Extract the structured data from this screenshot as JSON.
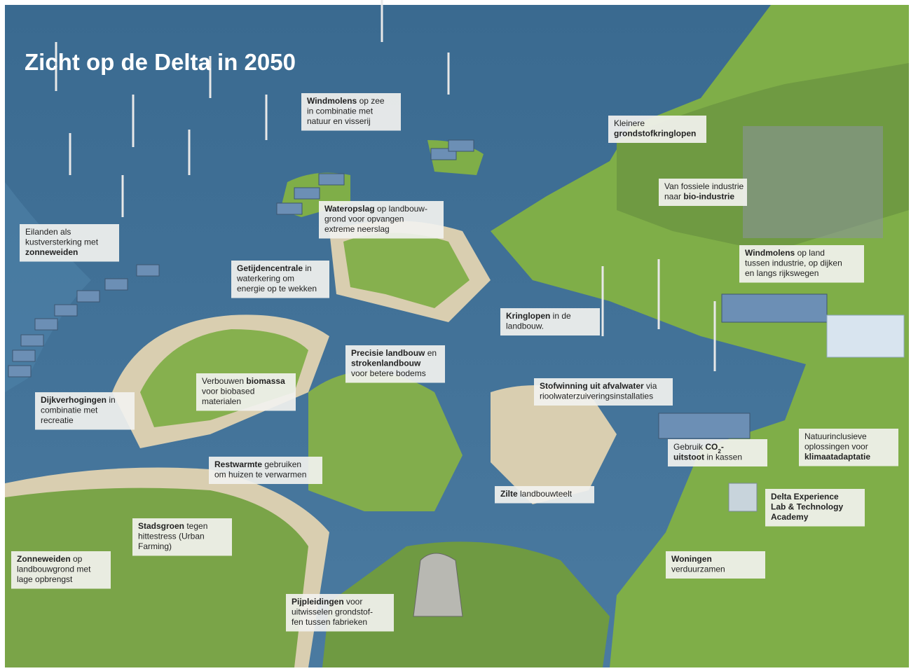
{
  "title": "Zicht op de Delta in 2050",
  "labels": [
    {
      "lines": [
        [
          {
            "text": "Windmolens",
            "bold": true
          },
          {
            "text": " op zee"
          }
        ],
        [
          {
            "text": "in combinatie met"
          }
        ],
        [
          {
            "text": "natuur en visserij"
          }
        ]
      ]
    },
    {
      "lines": [
        [
          {
            "text": "Kleinere"
          }
        ],
        [
          {
            "text": "grondstofkringlopen",
            "bold": true
          }
        ]
      ]
    },
    {
      "lines": [
        [
          {
            "text": "Van fossiele industrie"
          }
        ],
        [
          {
            "text": "naar "
          },
          {
            "text": "bio-industrie",
            "bold": true
          }
        ]
      ]
    },
    {
      "lines": [
        [
          {
            "text": "Wateropslag",
            "bold": true
          },
          {
            "text": " op landbouw-"
          }
        ],
        [
          {
            "text": "grond voor opvangen"
          }
        ],
        [
          {
            "text": "extreme neerslag"
          }
        ]
      ]
    },
    {
      "lines": [
        [
          {
            "text": "Eilanden als"
          }
        ],
        [
          {
            "text": "kustversterking met"
          }
        ],
        [
          {
            "text": "zonneweiden",
            "bold": true
          }
        ]
      ]
    },
    {
      "lines": [
        [
          {
            "text": "Getijdencentrale",
            "bold": true
          },
          {
            "text": " in"
          }
        ],
        [
          {
            "text": "waterkering om"
          }
        ],
        [
          {
            "text": "energie op te wekken"
          }
        ]
      ]
    },
    {
      "lines": [
        [
          {
            "text": "Windmolens",
            "bold": true
          },
          {
            "text": " op land"
          }
        ],
        [
          {
            "text": "tussen industrie, op dijken"
          }
        ],
        [
          {
            "text": "en langs rijkswegen"
          }
        ]
      ]
    },
    {
      "lines": [
        [
          {
            "text": "Kringlopen",
            "bold": true
          },
          {
            "text": " in de"
          }
        ],
        [
          {
            "text": "landbouw."
          }
        ]
      ]
    },
    {
      "lines": [
        [
          {
            "text": "Precisie landbouw",
            "bold": true
          },
          {
            "text": " en"
          }
        ],
        [
          {
            "text": "strokenlandbouw",
            "bold": true
          }
        ],
        [
          {
            "text": "voor betere bodems"
          }
        ]
      ]
    },
    {
      "lines": [
        [
          {
            "text": "Verbouwen "
          },
          {
            "text": "biomassa",
            "bold": true
          }
        ],
        [
          {
            "text": "voor biobased"
          }
        ],
        [
          {
            "text": "materialen"
          }
        ]
      ]
    },
    {
      "lines": [
        [
          {
            "text": "Dijkverhogingen",
            "bold": true
          },
          {
            "text": " in"
          }
        ],
        [
          {
            "text": "combinatie met"
          }
        ],
        [
          {
            "text": "recreatie"
          }
        ]
      ]
    },
    {
      "lines": [
        [
          {
            "text": "Stofwinning uit afvalwater",
            "bold": true
          },
          {
            "text": " via"
          }
        ],
        [
          {
            "text": "rioolwaterzuiveringsinstallaties"
          }
        ]
      ]
    },
    {
      "lines": [
        [
          {
            "text": "Natuurinclusieve"
          }
        ],
        [
          {
            "text": "oplossingen voor"
          }
        ],
        [
          {
            "text": "klimaatadaptatie",
            "bold": true
          }
        ]
      ]
    },
    {
      "lines": [
        [
          {
            "text": "Gebruik "
          },
          {
            "text": "CO",
            "bold": true
          },
          {
            "text": "2",
            "bold": true,
            "sub": true
          },
          {
            "text": "-",
            "bold": true
          }
        ],
        [
          {
            "text": "uitstoot",
            "bold": true
          },
          {
            "text": " in kassen"
          }
        ]
      ]
    },
    {
      "lines": [
        [
          {
            "text": "Restwarmte",
            "bold": true
          },
          {
            "text": " gebruiken"
          }
        ],
        [
          {
            "text": "om huizen te verwarmen"
          }
        ]
      ]
    },
    {
      "lines": [
        [
          {
            "text": "Zilte",
            "bold": true
          },
          {
            "text": " landbouwteelt"
          }
        ]
      ]
    },
    {
      "color": "#e2231a",
      "lines": [
        [
          {
            "text": "Delta Experience",
            "bold": true
          }
        ],
        [
          {
            "text": "Lab & Technology",
            "bold": true
          }
        ],
        [
          {
            "text": "Academy",
            "bold": true
          }
        ]
      ]
    },
    {
      "lines": [
        [
          {
            "text": "Stadsgroen",
            "bold": true
          },
          {
            "text": " tegen"
          }
        ],
        [
          {
            "text": "hittestress (Urban"
          }
        ],
        [
          {
            "text": "Farming)"
          }
        ]
      ]
    },
    {
      "lines": [
        [
          {
            "text": "Woningen",
            "bold": true
          }
        ],
        [
          {
            "text": "verduurzamen"
          }
        ]
      ]
    },
    {
      "lines": [
        [
          {
            "text": "Zonneweiden",
            "bold": true
          },
          {
            "text": " op"
          }
        ],
        [
          {
            "text": "landbouwgrond met"
          }
        ],
        [
          {
            "text": "lage opbrengst"
          }
        ]
      ]
    },
    {
      "lines": [
        [
          {
            "text": "Pijpleidingen",
            "bold": true
          },
          {
            "text": " voor"
          }
        ],
        [
          {
            "text": "uitwisselen grondstof-"
          }
        ],
        [
          {
            "text": "fen tussen fabrieken"
          }
        ]
      ]
    }
  ]
}
